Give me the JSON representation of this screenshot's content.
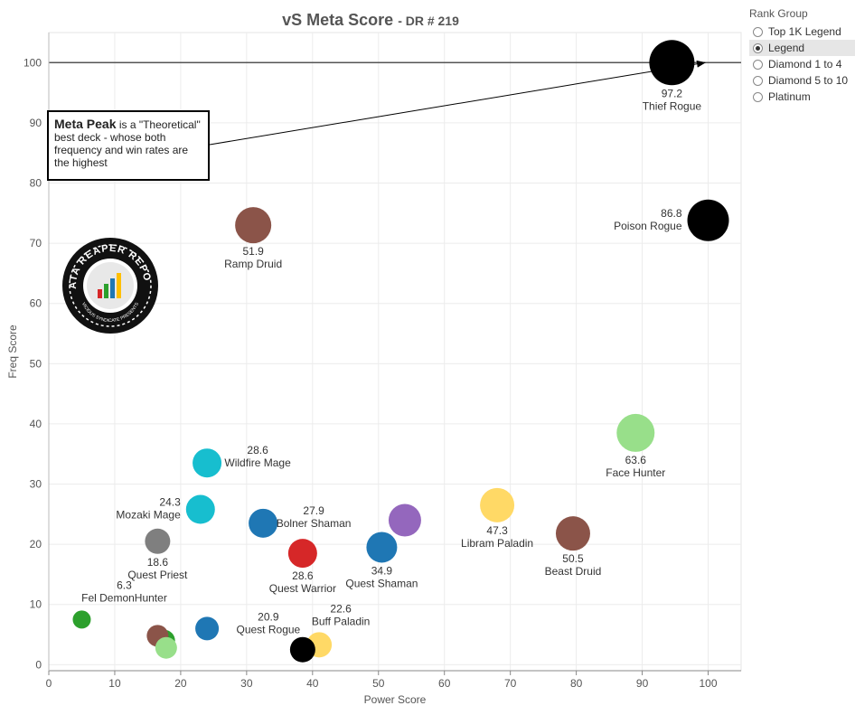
{
  "title": "vS Meta Score",
  "subtitle": "- DR # 219",
  "legend": {
    "title": "Rank Group",
    "items": [
      {
        "label": "Top 1K Legend",
        "selected": false
      },
      {
        "label": "Legend",
        "selected": true
      },
      {
        "label": "Diamond 1 to 4",
        "selected": false
      },
      {
        "label": "Diamond 5 to 10",
        "selected": false
      },
      {
        "label": "Platinum",
        "selected": false
      }
    ]
  },
  "annotation": {
    "heading": "Meta Peak",
    "text": " is a \"Theoretical\" best deck - whose both frequency and win rates are the highest"
  },
  "logo": {
    "text": "DATA REAPER REPORT",
    "subtext": "VICIOUS SYNDICATE PRESENTS"
  },
  "chart_data": {
    "type": "scatter",
    "xlabel": "Power Score",
    "ylabel": "Freq Score",
    "xlim": [
      0,
      105
    ],
    "ylim": [
      -1,
      105
    ],
    "xticks": [
      0,
      10,
      20,
      30,
      40,
      50,
      60,
      70,
      80,
      90,
      100
    ],
    "yticks": [
      0,
      10,
      20,
      30,
      40,
      50,
      60,
      70,
      80,
      90,
      100
    ],
    "reference_line_y": 100,
    "grid": true,
    "points": [
      {
        "name": "Thief Rogue",
        "score": "97.2",
        "x": 94.5,
        "y": 100,
        "color": "#000000",
        "size": 25,
        "label_pos": "below"
      },
      {
        "name": "Poison Rogue",
        "score": "86.8",
        "x": 100,
        "y": 73.8,
        "color": "#000000",
        "size": 23,
        "label_pos": "left"
      },
      {
        "name": "Ramp Druid",
        "score": "51.9",
        "x": 31,
        "y": 73,
        "color": "#8b5449",
        "size": 20,
        "label_pos": "below"
      },
      {
        "name": "Face Hunter",
        "score": "63.6",
        "x": 89,
        "y": 38.5,
        "color": "#98df8a",
        "size": 21,
        "label_pos": "below"
      },
      {
        "name": "Wildfire Mage",
        "score": "28.6",
        "x": 24,
        "y": 33.5,
        "color": "#17becf",
        "size": 16,
        "label_pos": "right"
      },
      {
        "name": "Mozaki Mage",
        "score": "24.3",
        "x": 23,
        "y": 25.8,
        "color": "#17becf",
        "size": 16,
        "label_pos": "left"
      },
      {
        "name": "Bolner Shaman",
        "score": "27.9",
        "x": 32.5,
        "y": 23.5,
        "color": "#1f77b4",
        "size": 16,
        "label_pos": "right"
      },
      {
        "name": "Quest Priest",
        "score": "18.6",
        "x": 16.5,
        "y": 20.5,
        "color": "#7f7f7f",
        "size": 14,
        "label_pos": "below"
      },
      {
        "name": "Quest Warrior",
        "score": "28.6",
        "x": 38.5,
        "y": 18.5,
        "color": "#d62728",
        "size": 16,
        "label_pos": "below"
      },
      {
        "name": "Quest Shaman",
        "score": "34.9",
        "x": 50.5,
        "y": 19.5,
        "color": "#1f77b4",
        "size": 17,
        "label_pos": "below"
      },
      {
        "name": "",
        "score": "",
        "x": 54,
        "y": 24,
        "color": "#9467bd",
        "size": 18,
        "label_pos": "none"
      },
      {
        "name": "Libram Paladin",
        "score": "47.3",
        "x": 68,
        "y": 26.5,
        "color": "#ffd966",
        "size": 19,
        "label_pos": "below"
      },
      {
        "name": "Beast Druid",
        "score": "50.5",
        "x": 79.5,
        "y": 21.8,
        "color": "#8b5449",
        "size": 19,
        "label_pos": "below"
      },
      {
        "name": "Fel DemonHunter",
        "score": "6.3",
        "x": 5,
        "y": 7.5,
        "color": "#2ca02c",
        "size": 10,
        "label_pos": "above"
      },
      {
        "name": "",
        "score": "",
        "x": 17.5,
        "y": 4,
        "color": "#2ca02c",
        "size": 12,
        "label_pos": "none"
      },
      {
        "name": "",
        "score": "",
        "x": 16.5,
        "y": 4.8,
        "color": "#8b5449",
        "size": 12,
        "label_pos": "none"
      },
      {
        "name": "",
        "score": "",
        "x": 17.8,
        "y": 2.8,
        "color": "#98df8a",
        "size": 12,
        "label_pos": "none"
      },
      {
        "name": "",
        "score": "",
        "x": 24,
        "y": 6,
        "color": "#1f77b4",
        "size": 13,
        "label_pos": "none"
      },
      {
        "name": "Buff Paladin",
        "score": "22.6",
        "x": 41,
        "y": 3.3,
        "color": "#ffd966",
        "size": 14,
        "label_pos": "above-right"
      },
      {
        "name": "Quest Rogue",
        "score": "20.9",
        "x": 38.5,
        "y": 2.5,
        "color": "#000000",
        "size": 14,
        "label_pos": "above-left"
      }
    ]
  }
}
